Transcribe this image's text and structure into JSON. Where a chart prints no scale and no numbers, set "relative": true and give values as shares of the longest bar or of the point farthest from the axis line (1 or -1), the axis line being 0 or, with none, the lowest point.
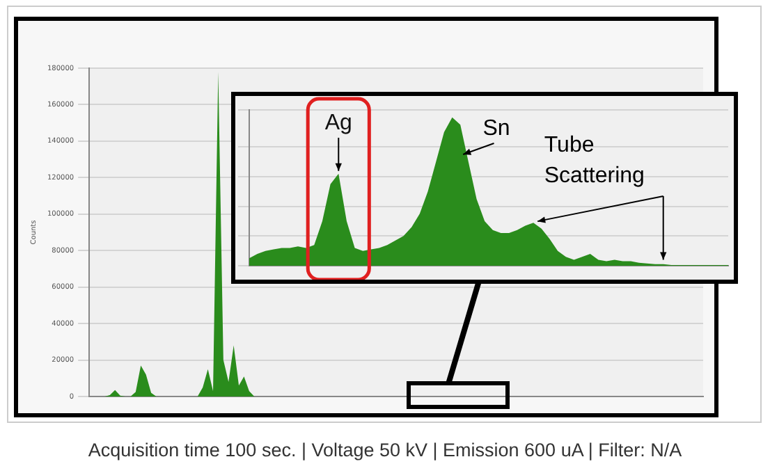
{
  "chart_data": [
    {
      "type": "area",
      "ylabel": "Counts",
      "categories": [
        null,
        null,
        null,
        null,
        null,
        null,
        null,
        null,
        null,
        null,
        null,
        null,
        null,
        null,
        null,
        null,
        null,
        null,
        null,
        null,
        null,
        null,
        null,
        null,
        null,
        null,
        null,
        null,
        null,
        null,
        null,
        null,
        null,
        null,
        null,
        null,
        null,
        null,
        null,
        null,
        null,
        null,
        null,
        null,
        null,
        null,
        null,
        null,
        null,
        null,
        null,
        null,
        null,
        null,
        null,
        null,
        null,
        null,
        null,
        null,
        null,
        null,
        null,
        null,
        null,
        null,
        null,
        null,
        null,
        null,
        null,
        null,
        null,
        null,
        null,
        null,
        null,
        null,
        null,
        null,
        null,
        null,
        null,
        null,
        null,
        null,
        null,
        null,
        null,
        null,
        null,
        null,
        null,
        null,
        null,
        null,
        null,
        null,
        null,
        null,
        null,
        null,
        null,
        null,
        null,
        null,
        null,
        null,
        null,
        null,
        null,
        null,
        null,
        null,
        null,
        null,
        null,
        null,
        null,
        null
      ],
      "series": [
        {
          "color": "#2a8c1c",
          "values": [
            0,
            0,
            0,
            0,
            800,
            3500,
            500,
            0,
            0,
            2500,
            17000,
            12000,
            2000,
            0,
            0,
            0,
            0,
            0,
            0,
            0,
            0,
            0,
            5000,
            15000,
            3000,
            178000,
            20000,
            8000,
            28000,
            6000,
            11000,
            3000,
            0,
            0,
            0,
            0,
            0,
            0,
            0,
            0,
            0,
            0,
            0,
            0,
            0,
            0,
            0,
            0,
            0,
            0,
            0,
            0,
            0,
            0,
            0,
            0,
            0,
            0,
            0,
            0,
            0,
            0,
            0,
            0,
            0,
            0,
            0,
            0,
            0,
            0,
            0,
            0,
            0,
            0,
            0,
            0,
            0,
            0,
            0,
            0,
            0,
            0,
            0,
            0,
            0,
            0,
            0,
            0,
            0,
            0,
            0,
            0,
            0,
            0,
            0,
            0,
            0,
            0,
            0,
            0,
            0,
            0,
            0,
            0,
            0,
            0,
            0,
            0,
            0,
            0,
            0,
            0,
            0,
            0,
            0,
            0,
            0,
            0,
            0,
            0
          ]
        }
      ],
      "ylim": [
        0,
        180000
      ],
      "yticks": [
        0,
        20000,
        40000,
        60000,
        80000,
        100000,
        120000,
        140000,
        160000,
        180000
      ],
      "grid": "y",
      "legend": false,
      "tick_labels": "y",
      "annotations": [
        "Acquisition time 100 sec. | Voltage 50 kV | Emission 600 uA | Filter: N/A"
      ]
    },
    {
      "type": "area",
      "relative": true,
      "tick_labels": false,
      "grid": "y",
      "legend": false,
      "categories": [
        null,
        null,
        null,
        null,
        null,
        null,
        null,
        null,
        null,
        null,
        null,
        null,
        null,
        null,
        null,
        null,
        null,
        null,
        null,
        null,
        null,
        null,
        null,
        null,
        null,
        null,
        null,
        null,
        null,
        null,
        null,
        null,
        null,
        null,
        null,
        null,
        null,
        null,
        null,
        null,
        null,
        null,
        null,
        null,
        null,
        null,
        null,
        null,
        null,
        null,
        null,
        null,
        null,
        null,
        null,
        null,
        null,
        null,
        null,
        null
      ],
      "series": [
        {
          "color": "#2a8c1c",
          "values": [
            0.05,
            0.08,
            0.1,
            0.11,
            0.12,
            0.12,
            0.13,
            0.12,
            0.14,
            0.3,
            0.55,
            0.62,
            0.3,
            0.12,
            0.1,
            0.11,
            0.12,
            0.14,
            0.17,
            0.2,
            0.26,
            0.35,
            0.5,
            0.7,
            0.9,
            1,
            0.95,
            0.7,
            0.45,
            0.3,
            0.24,
            0.22,
            0.22,
            0.24,
            0.27,
            0.29,
            0.25,
            0.18,
            0.1,
            0.06,
            0.04,
            0.06,
            0.08,
            0.04,
            0.03,
            0.04,
            0.03,
            0.03,
            0.02,
            0.015,
            0.01,
            0.01,
            0.005,
            0.005,
            0.005,
            0.005,
            0.005,
            0.005,
            0.005,
            0.005
          ]
        }
      ],
      "annotations": [
        "Ag",
        "Sn",
        "Tube Scattering"
      ]
    }
  ]
}
